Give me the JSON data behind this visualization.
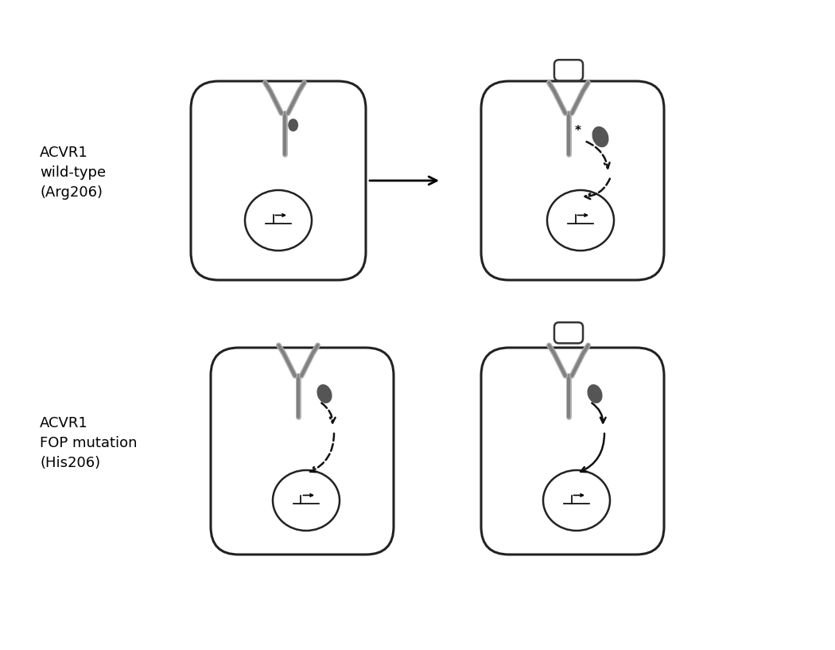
{
  "bg_color": "#ffffff",
  "label1": "ACVR1\nwild-type\n(Arg206)",
  "label2": "ACVR1\nFOP mutation\n(His206)",
  "receptor_color": "#808080",
  "receptor_light": "#b0b0b0",
  "dark_gray": "#555555",
  "arrow_color": "#111111",
  "cell_edge": "#222222",
  "nucleus_edge": "#222222"
}
